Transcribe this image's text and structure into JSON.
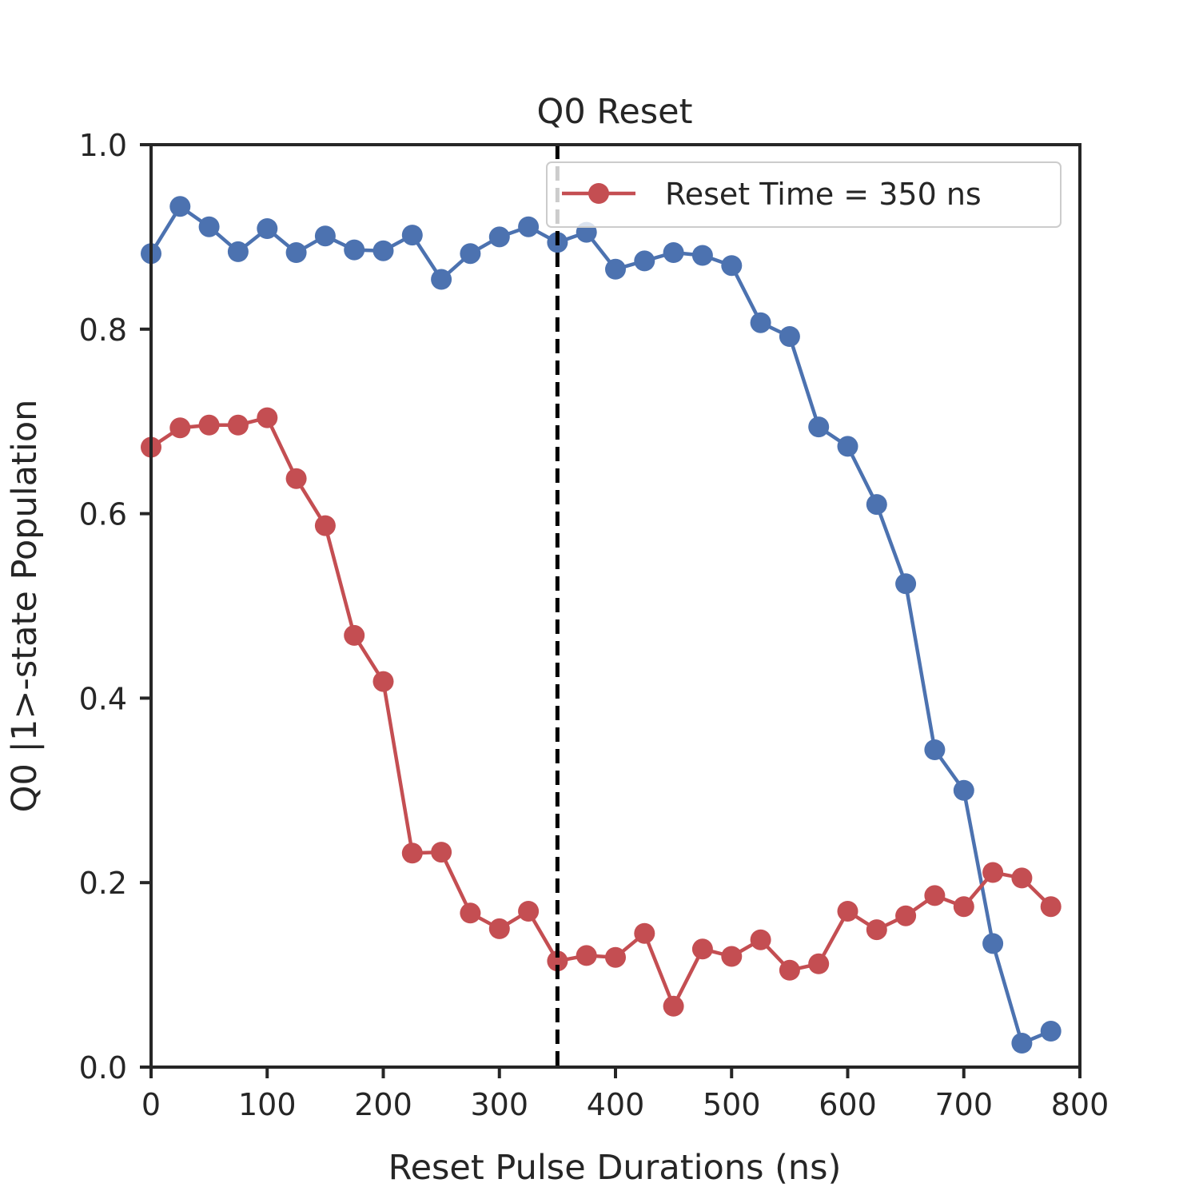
{
  "chart_data": {
    "type": "line",
    "title": "Q0 Reset",
    "xlabel": "Reset Pulse Durations (ns)",
    "ylabel": "Q0 |1>-state Population",
    "xlim": [
      0,
      800
    ],
    "ylim": [
      0,
      1.0
    ],
    "xticks": [
      0,
      100,
      200,
      300,
      400,
      500,
      600,
      700,
      800
    ],
    "yticks": [
      0.0,
      0.2,
      0.4,
      0.6,
      0.8,
      1.0
    ],
    "xtick_labels": [
      "0",
      "100",
      "200",
      "300",
      "400",
      "500",
      "600",
      "700",
      "800"
    ],
    "ytick_labels": [
      "0.0",
      "0.2",
      "0.4",
      "0.6",
      "0.8",
      "1.0"
    ],
    "grid": false,
    "legend_position": "top-right",
    "vline": {
      "x": 350,
      "style": "dashed",
      "color": "#000000"
    },
    "x": [
      0,
      25,
      50,
      75,
      100,
      125,
      150,
      175,
      200,
      225,
      250,
      275,
      300,
      325,
      350,
      375,
      400,
      425,
      450,
      475,
      500,
      525,
      550,
      575,
      600,
      625,
      650,
      675,
      700,
      725,
      750,
      775
    ],
    "series": [
      {
        "color": "#4c72b0",
        "values": [
          0.882,
          0.933,
          0.911,
          0.884,
          0.909,
          0.883,
          0.901,
          0.886,
          0.885,
          0.902,
          0.854,
          0.882,
          0.9,
          0.911,
          0.894,
          0.905,
          0.865,
          0.874,
          0.883,
          0.88,
          0.869,
          0.807,
          0.792,
          0.694,
          0.673,
          0.61,
          0.524,
          0.344,
          0.3,
          0.134,
          0.026,
          0.039
        ]
      },
      {
        "name": "Reset Time = 350 ns",
        "color": "#c44e52",
        "values": [
          0.672,
          0.693,
          0.696,
          0.696,
          0.704,
          0.638,
          0.587,
          0.468,
          0.418,
          0.232,
          0.233,
          0.167,
          0.15,
          0.169,
          0.115,
          0.121,
          0.119,
          0.145,
          0.066,
          0.128,
          0.12,
          0.138,
          0.105,
          0.112,
          0.169,
          0.149,
          0.164,
          0.186,
          0.174,
          0.211,
          0.205,
          0.174
        ]
      }
    ]
  }
}
